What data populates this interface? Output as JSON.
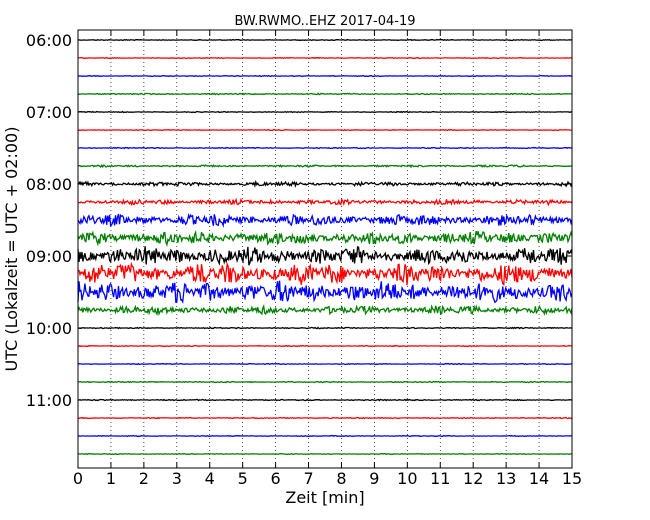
{
  "chart_data": {
    "type": "line",
    "title": "BW.RWMO..EHZ 2017-04-19",
    "xlabel": "Zeit  [min]",
    "ylabel": "UTC (Lokalzeit = UTC + 02:00)",
    "xlim": [
      0,
      15
    ],
    "x_ticks": [
      0,
      1,
      2,
      3,
      4,
      5,
      6,
      7,
      8,
      9,
      10,
      11,
      12,
      13,
      14,
      15
    ],
    "x_tick_labels": [
      "0",
      "1",
      "2",
      "3",
      "4",
      "5",
      "6",
      "7",
      "8",
      "9",
      "10",
      "11",
      "12",
      "13",
      "14",
      "15"
    ],
    "y_tick_labels": [
      "06:00",
      "07:00",
      "08:00",
      "09:00",
      "10:00",
      "11:00"
    ],
    "grid": "vertical dotted",
    "trace_colors": [
      "#000000",
      "#ff0000",
      "#0000ff",
      "#008000"
    ],
    "traces": [
      {
        "start": "06:00",
        "amplitude": 0.05
      },
      {
        "start": "06:15",
        "amplitude": 0.05
      },
      {
        "start": "06:30",
        "amplitude": 0.05
      },
      {
        "start": "06:45",
        "amplitude": 0.08
      },
      {
        "start": "07:00",
        "amplitude": 0.05
      },
      {
        "start": "07:15",
        "amplitude": 0.05
      },
      {
        "start": "07:30",
        "amplitude": 0.06
      },
      {
        "start": "07:45",
        "amplitude": 0.12
      },
      {
        "start": "08:00",
        "amplitude": 0.25
      },
      {
        "start": "08:15",
        "amplitude": 0.3
      },
      {
        "start": "08:30",
        "amplitude": 0.7
      },
      {
        "start": "08:45",
        "amplitude": 0.8
      },
      {
        "start": "09:00",
        "amplitude": 1.1
      },
      {
        "start": "09:15",
        "amplitude": 1.3
      },
      {
        "start": "09:30",
        "amplitude": 1.3
      },
      {
        "start": "09:45",
        "amplitude": 0.5
      },
      {
        "start": "10:00",
        "amplitude": 0.07
      },
      {
        "start": "10:15",
        "amplitude": 0.05
      },
      {
        "start": "10:30",
        "amplitude": 0.05
      },
      {
        "start": "10:45",
        "amplitude": 0.07
      },
      {
        "start": "11:00",
        "amplitude": 0.07
      },
      {
        "start": "11:15",
        "amplitude": 0.06
      },
      {
        "start": "11:30",
        "amplitude": 0.05
      },
      {
        "start": "11:45",
        "amplitude": 0.05
      }
    ]
  }
}
